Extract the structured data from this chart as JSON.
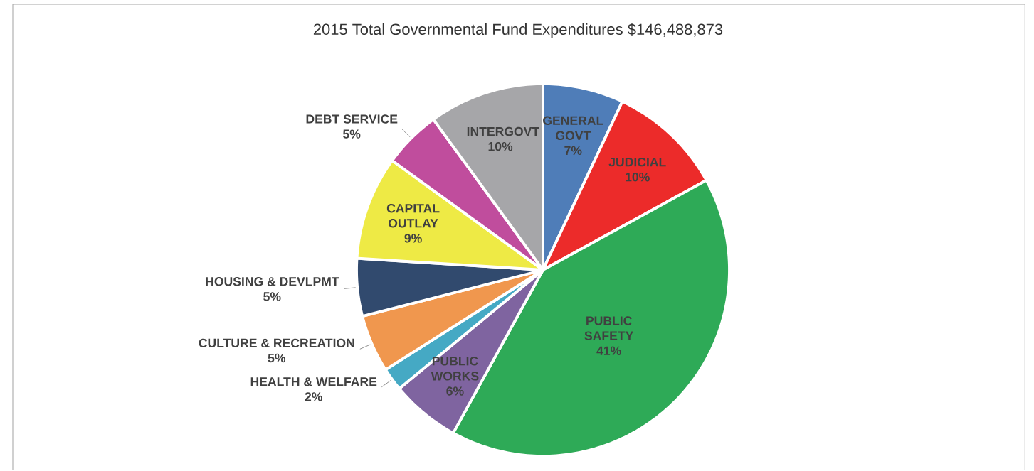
{
  "chart_data": {
    "type": "pie",
    "title": "2015 Total Governmental Fund Expenditures $146,488,873",
    "categories": [
      "GENERAL GOVT",
      "JUDICIAL",
      "PUBLIC SAFETY",
      "PUBLIC WORKS",
      "HEALTH & WELFARE",
      "CULTURE & RECREATION",
      "HOUSING & DEVLPMT",
      "CAPITAL OUTLAY",
      "DEBT SERVICE",
      "INTERGOVT"
    ],
    "values": [
      7,
      10,
      41,
      6,
      2,
      5,
      5,
      9,
      5,
      10
    ],
    "value_labels": [
      "7%",
      "10%",
      "41%",
      "6%",
      "2%",
      "5%",
      "5%",
      "9%",
      "5%",
      "10%"
    ],
    "colors": [
      "#4f7db8",
      "#ec2b2a",
      "#2eaa57",
      "#7f64a0",
      "#45a9c4",
      "#f0974e",
      "#314a6e",
      "#eeea45",
      "#c04d9d",
      "#a6a6a9"
    ]
  }
}
